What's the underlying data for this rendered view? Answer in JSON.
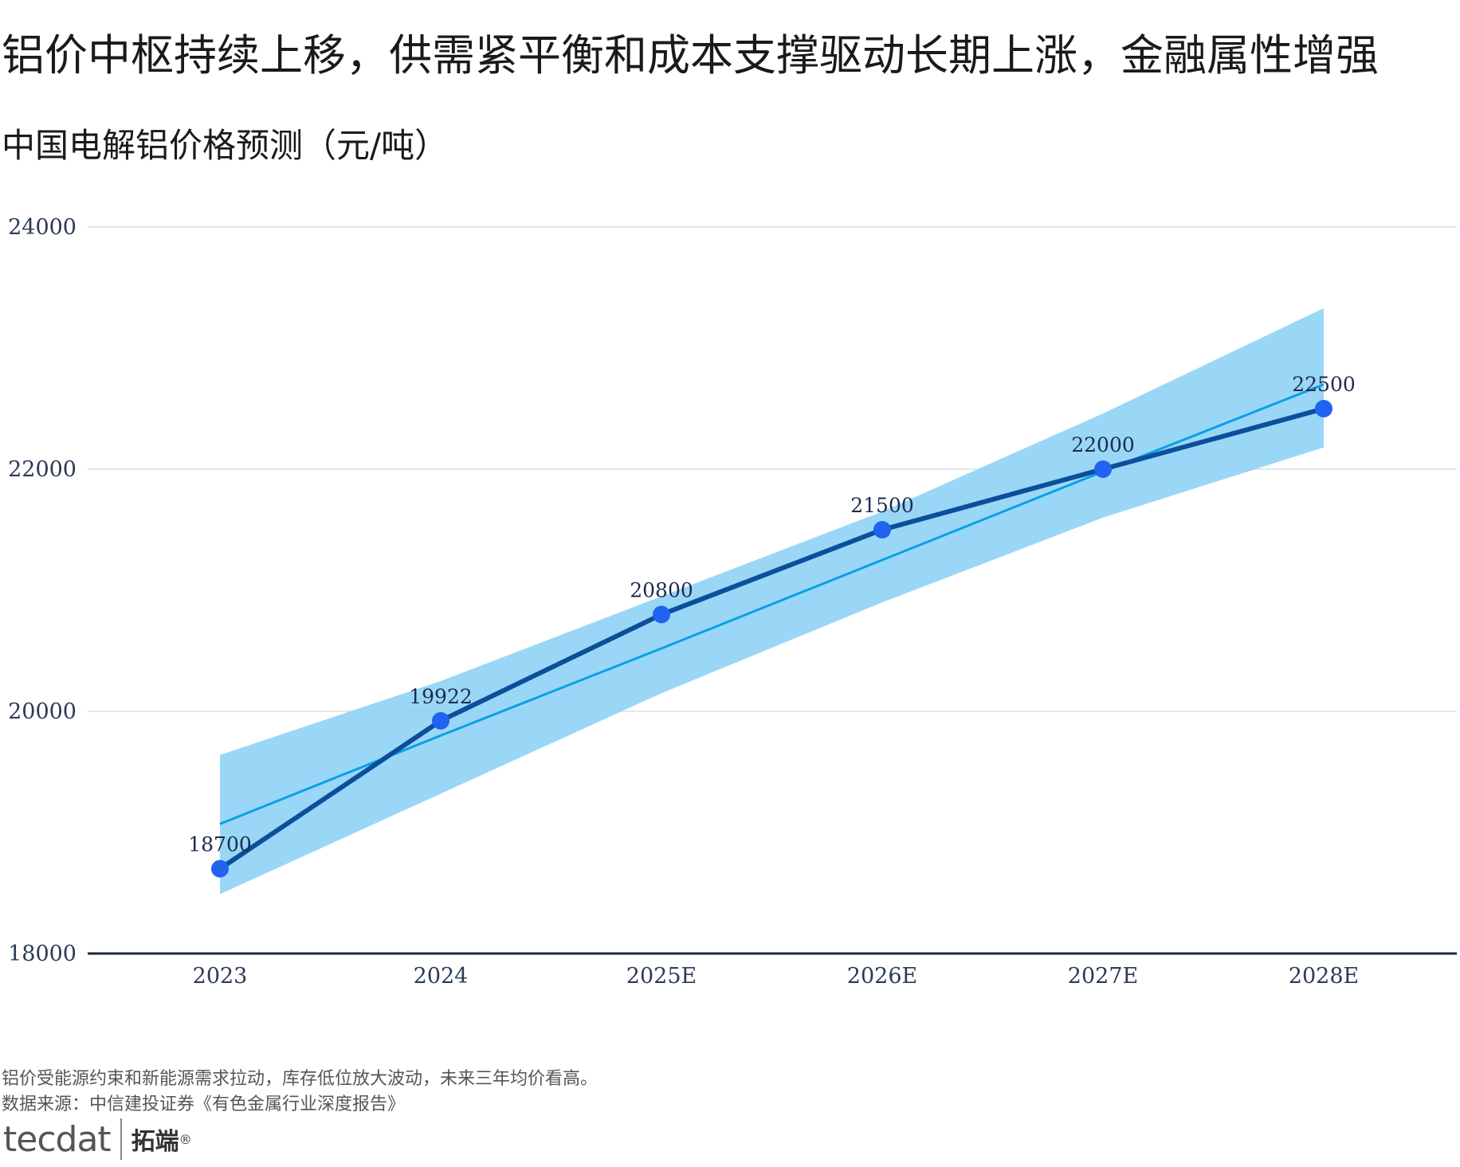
{
  "title": "铝价中枢持续上移，供需紧平衡和成本支撑驱动长期上涨，金融属性增强",
  "subtitle": "中国电解铝价格预测（元/吨）",
  "footnote": "铝价受能源约束和新能源需求拉动，库存低位放大波动，未来三年均价看高。",
  "source": "数据来源：中信建投证券《有色金属行业深度报告》",
  "logo": {
    "mark": "tecdat",
    "cn": "拓端",
    "reg": "®"
  },
  "colors": {
    "line": "#0b4f9c",
    "marker": "#1f63f0",
    "trend": "#0aa0e6",
    "band": "#8fd3f5",
    "grid": "#e3e6ea",
    "axis": "#1a2a40"
  },
  "chart_data": {
    "type": "line",
    "categories": [
      "2023",
      "2024",
      "2025E",
      "2026E",
      "2027E",
      "2028E"
    ],
    "series": [
      {
        "values": [
          18700,
          19922,
          20800,
          21500,
          22000,
          22500
        ],
        "data_labels": [
          "18700",
          "19922",
          "20800",
          "21500",
          "22000",
          "22500"
        ]
      }
    ],
    "trend_line": [
      19070,
      19800,
      20520,
      21250,
      21980,
      22700
    ],
    "confidence_band": {
      "upper": [
        19640,
        20250,
        20950,
        21650,
        22460,
        23330
      ],
      "lower": [
        18490,
        19320,
        20150,
        20900,
        21600,
        22180
      ]
    },
    "ylim": [
      18000,
      24000
    ],
    "yticks": [
      "18000",
      "20000",
      "22000",
      "24000"
    ],
    "grid": true,
    "legend": "none"
  }
}
